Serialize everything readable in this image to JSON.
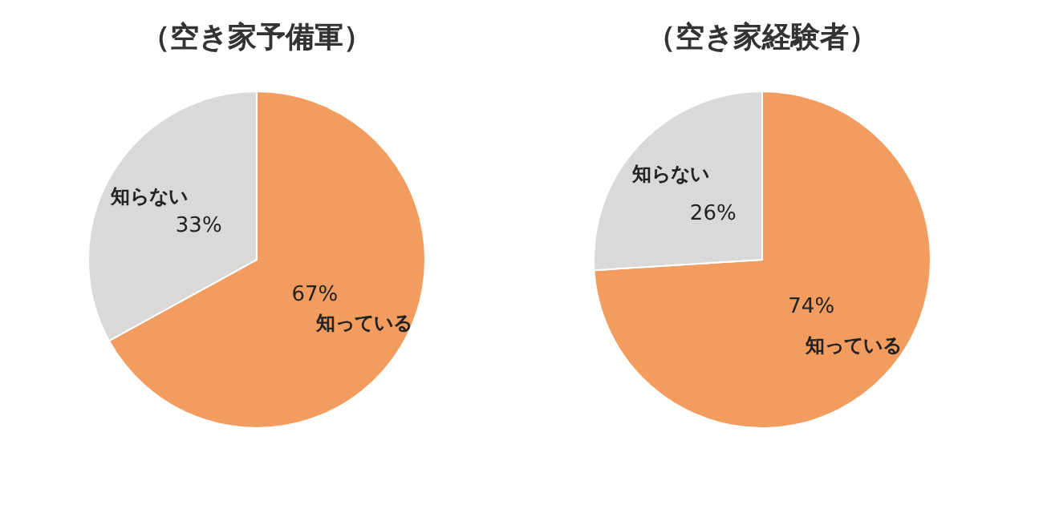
{
  "chart_data": [
    {
      "type": "pie",
      "title": "（空き家予備軍）",
      "categories": [
        "知っている",
        "知らない"
      ],
      "values": [
        67,
        33
      ],
      "colors": [
        "#f29c5f",
        "#d9d9d9"
      ],
      "value_labels": [
        "67%",
        "33%"
      ]
    },
    {
      "type": "pie",
      "title": "（空き家経験者）",
      "categories": [
        "知っている",
        "知らない"
      ],
      "values": [
        74,
        26
      ],
      "colors": [
        "#f29c5f",
        "#d9d9d9"
      ],
      "value_labels": [
        "74%",
        "26%"
      ]
    }
  ]
}
